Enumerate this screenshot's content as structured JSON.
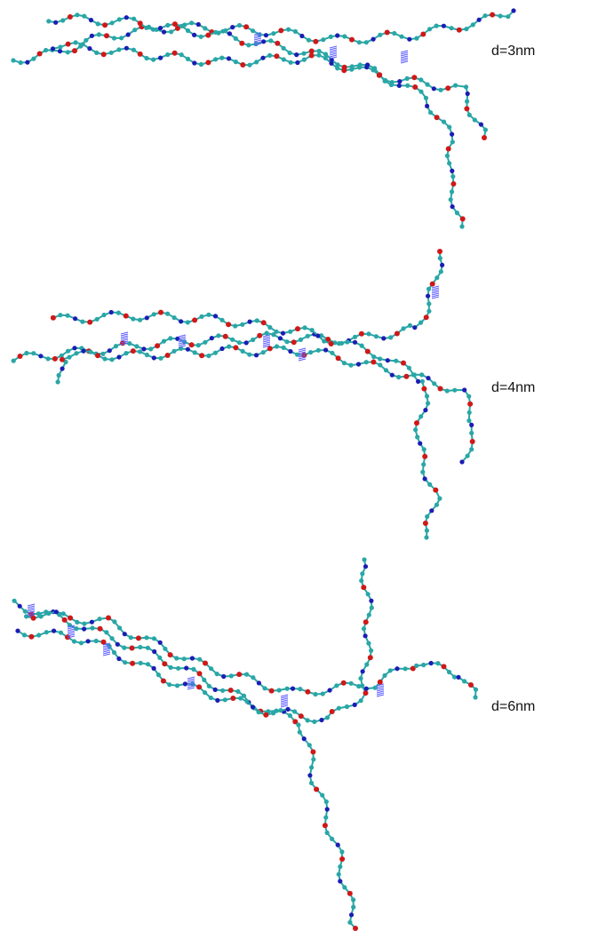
{
  "labels": [
    "d=3nm",
    "d=4nm",
    "d=6nm"
  ]
}
